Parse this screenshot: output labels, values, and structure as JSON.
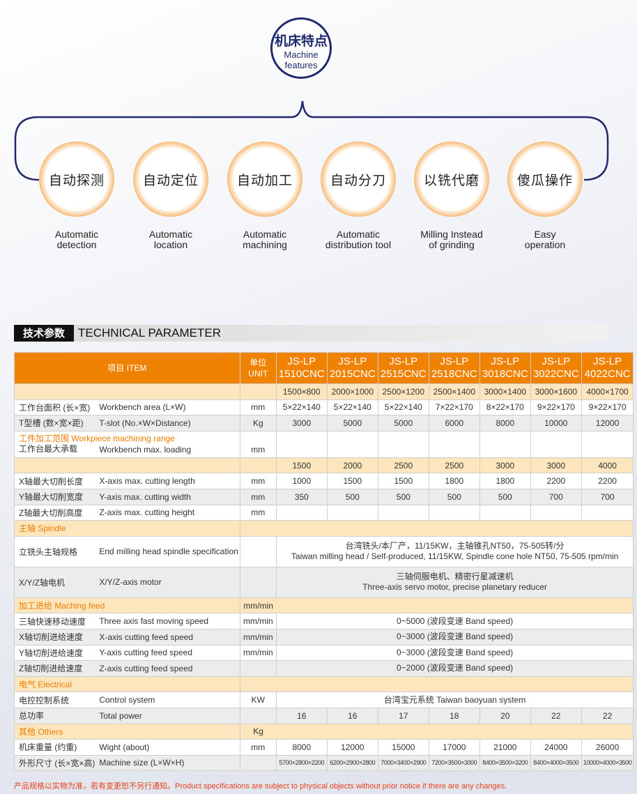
{
  "header": {
    "title_cn": "机床特点",
    "title_en_1": "Machine",
    "title_en_2": "features"
  },
  "colors": {
    "navy": "#1f2a6e",
    "orange": "#ef8200",
    "light_yellow": "#fde6bd",
    "note_red": "#e8401c"
  },
  "features": [
    {
      "cn": "自动探测",
      "en1": "Automatic",
      "en2": "detection"
    },
    {
      "cn": "自动定位",
      "en1": "Automatic",
      "en2": "location"
    },
    {
      "cn": "自动加工",
      "en1": "Automatic",
      "en2": "machining"
    },
    {
      "cn": "自动分刀",
      "en1": "Automatic",
      "en2": "distribution tool"
    },
    {
      "cn": "以铣代磨",
      "en1": "Milling Instead",
      "en2": "of grinding"
    },
    {
      "cn": "傻瓜操作",
      "en1": "Easy",
      "en2": "operation"
    }
  ],
  "section": {
    "cn": "技术参数",
    "en": "TECHNICAL PARAMETER"
  },
  "table": {
    "item_header": "项目 ITEM",
    "unit_header_1": "单位",
    "unit_header_2": "UNIT",
    "models": [
      [
        "JS-LP",
        "1510CNC"
      ],
      [
        "JS-LP",
        "2015CNC"
      ],
      [
        "JS-LP",
        "2515CNC"
      ],
      [
        "JS-LP",
        "2518CNC"
      ],
      [
        "JS-LP",
        "3018CNC"
      ],
      [
        "JS-LP",
        "3022CNC"
      ],
      [
        "JS-LP",
        "4022CNC"
      ]
    ],
    "rows": [
      {
        "style": "yellow",
        "cn": "",
        "en": "",
        "unit": "",
        "values": [
          "1500×800",
          "2000×1000",
          "2500×1200",
          "2500×1400",
          "3000×1400",
          "3000×1600",
          "4000×1700"
        ]
      },
      {
        "style": "white",
        "cn": "工作台面积 (长×宽)",
        "en": "Workbench area (L×W)",
        "unit": "mm",
        "values": [
          "5×22×140",
          "5×22×140",
          "5×22×140",
          "7×22×170",
          "8×22×170",
          "9×22×170",
          "9×22×170"
        ]
      },
      {
        "style": "grey",
        "cn": "T型槽 (数×宽×距)",
        "en": "T-slot (No.×W×Distance)",
        "unit": "Kg",
        "values": [
          "3000",
          "5000",
          "5000",
          "6000",
          "8000",
          "10000",
          "12000"
        ]
      },
      {
        "style": "white",
        "cn": "工作台最大承载",
        "en": "Workbench max. loading",
        "overlay": "工件加工范围 Workpiece machining range",
        "unit": "mm",
        "values": [
          "",
          "",
          "",
          "",
          "",
          "",
          ""
        ]
      },
      {
        "style": "yellow",
        "cn": "",
        "en": "",
        "unit": "",
        "values": [
          "1500",
          "2000",
          "2500",
          "2500",
          "3000",
          "3000",
          "4000"
        ]
      },
      {
        "style": "white",
        "cn": "X轴最大切削长度",
        "en": "X-axis max. cutting length",
        "unit": "mm",
        "values": [
          "1000",
          "1500",
          "1500",
          "1800",
          "1800",
          "2200",
          "2200"
        ]
      },
      {
        "style": "grey",
        "cn": "Y轴最大切削宽度",
        "en": "Y-axis max. cutting width",
        "unit": "mm",
        "values": [
          "350",
          "500",
          "500",
          "500",
          "500",
          "700",
          "700"
        ]
      },
      {
        "style": "white",
        "cn": "Z轴最大切削高度",
        "en": "Z-axis max. cutting height",
        "unit": "mm",
        "values": [
          "",
          "",
          "",
          "",
          "",
          "",
          ""
        ]
      },
      {
        "style": "yellow",
        "section": true,
        "cn": "主轴 Spindle",
        "unit": ""
      },
      {
        "style": "white",
        "cn": "立铣头主轴规格",
        "en": "End milling head spindle specification",
        "unit": "",
        "span": [
          "台湾铣头/本厂产，11/15KW，主轴锥孔NT50，75-505转/分",
          "Taiwan milling head / Self-produced, 11/15KW, Spindle cone hole NT50, 75-505 rpm/min"
        ]
      },
      {
        "style": "grey",
        "cn": "X/Y/Z轴电机",
        "en": "X/Y/Z-axis motor",
        "unit": "",
        "span": [
          "三轴伺服电机、精密行星减速机",
          "Three-axis servo motor, precise planetary reducer"
        ]
      },
      {
        "style": "yellow",
        "section": true,
        "cn": "加工进给 Maching feed",
        "unit": "mm/min"
      },
      {
        "style": "white",
        "cn": "三轴快速移动速度",
        "en": "Three axis fast moving speed",
        "unit": "mm/min",
        "span": [
          "0~5000 (波段变速 Band speed)"
        ]
      },
      {
        "style": "grey",
        "cn": "X轴切削进给速度",
        "en": "X-axis cutting feed speed",
        "unit": "mm/min",
        "span": [
          "0~3000 (波段变速 Band speed)"
        ]
      },
      {
        "style": "white",
        "cn": "Y轴切削进给速度",
        "en": "Y-axis cutting feed speed",
        "unit": "mm/min",
        "span": [
          "0~3000 (波段变速 Band speed)"
        ]
      },
      {
        "style": "grey",
        "cn": "Z轴切削进给速度",
        "en": "Z-axis cutting feed speed",
        "unit": "",
        "span": [
          "0~2000 (波段变速 Band speed)"
        ]
      },
      {
        "style": "yellow",
        "section": true,
        "cn": "电气 Electrical",
        "unit": ""
      },
      {
        "style": "white",
        "cn": "电控控制系统",
        "en": "Control system",
        "unit": "KW",
        "span": [
          "台湾宝元系统 Taiwan baoyuan system"
        ]
      },
      {
        "style": "grey",
        "cn": "总功率",
        "en": "Total power",
        "unit": "",
        "values": [
          "16",
          "16",
          "17",
          "18",
          "20",
          "22",
          "22"
        ]
      },
      {
        "style": "yellow",
        "section": true,
        "cn": "其他 Others",
        "unit": "Kg"
      },
      {
        "style": "white",
        "cn": "机床重量 (约重)",
        "en": "Wight (about)",
        "unit": "mm",
        "values": [
          "8000",
          "12000",
          "15000",
          "17000",
          "21000",
          "24000",
          "26000"
        ]
      },
      {
        "style": "grey",
        "small": true,
        "cn": "外形尺寸 (长×宽×高)",
        "en": "Machine size  (L×W×H)",
        "unit": "",
        "values": [
          "5700×2800×2200",
          "6200×2900×2800",
          "7000×3400×2900",
          "7200×3500×3000",
          "8400×3500×3200",
          "8400×4000×3500",
          "10000×4000×3500"
        ]
      }
    ]
  },
  "note": "产品规格以实物为准，若有变更恕不另行通知。Product specifications are subject to physical objects without prior notice if there are any changes."
}
